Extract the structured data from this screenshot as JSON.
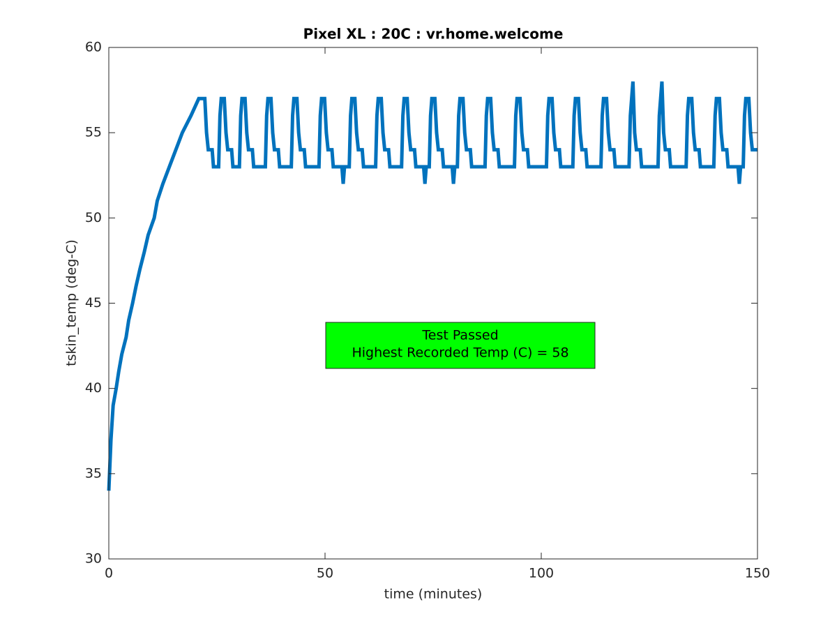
{
  "chart_data": {
    "type": "line",
    "title": "Pixel XL : 20C : vr.home.welcome",
    "xlabel": "time (minutes)",
    "ylabel": "tskin_temp (deg-C)",
    "annotation": [
      "Test Passed",
      "Highest Recorded Temp (C) = 58"
    ],
    "color": "#0072bd",
    "xlim": [
      0,
      150
    ],
    "xticks": [
      0,
      50,
      100,
      150
    ],
    "ylim": [
      30,
      60
    ],
    "yticks": [
      30,
      35,
      40,
      45,
      50,
      55,
      60
    ],
    "x": [
      0,
      0.5,
      1,
      1.7,
      2.3,
      3,
      4,
      4.6,
      5.5,
      6.3,
      7.2,
      8.2,
      9.1,
      10.5,
      11.2,
      12.5,
      14,
      15.5,
      17,
      19,
      20.8,
      22.2,
      22.6,
      23.0,
      23.9,
      24.2,
      25.4,
      25.7,
      26.0,
      26.7,
      27.1,
      27.5,
      28.4,
      28.7,
      30.2,
      30.5,
      30.8,
      31.5,
      31.9,
      32.3,
      33.2,
      33.5,
      36.2,
      36.5,
      36.8,
      37.5,
      37.9,
      38.3,
      39.2,
      39.5,
      42.2,
      42.5,
      42.8,
      43.5,
      43.9,
      44.3,
      45.2,
      45.5,
      48.6,
      48.9,
      49.2,
      49.9,
      50.3,
      50.7,
      51.6,
      51.9,
      53.9,
      54.2,
      54.5,
      55.6,
      55.9,
      56.2,
      56.9,
      57.3,
      57.7,
      58.6,
      58.9,
      61.7,
      62.0,
      62.3,
      63.0,
      63.4,
      63.8,
      64.7,
      65.0,
      67.7,
      68.0,
      68.3,
      69.0,
      69.4,
      69.8,
      70.7,
      71.0,
      72.8,
      73.1,
      73.4,
      74.1,
      74.4,
      74.7,
      75.4,
      75.8,
      76.2,
      77.1,
      77.4,
      79.4,
      79.7,
      80.0,
      80.6,
      80.9,
      81.2,
      81.9,
      82.3,
      82.7,
      83.6,
      83.9,
      87.0,
      87.3,
      87.6,
      88.3,
      88.7,
      89.1,
      90.0,
      90.3,
      93.8,
      94.1,
      94.4,
      95.1,
      95.5,
      95.9,
      96.8,
      97.1,
      101.2,
      101.5,
      101.8,
      102.5,
      102.9,
      103.3,
      104.2,
      104.5,
      107.3,
      107.6,
      107.9,
      108.6,
      109.0,
      109.4,
      110.3,
      110.6,
      113.8,
      114.1,
      114.4,
      115.1,
      115.5,
      115.9,
      116.8,
      117.1,
      120.3,
      120.6,
      120.9,
      121.2,
      121.6,
      122.0,
      122.9,
      123.2,
      127.0,
      127.3,
      127.6,
      127.9,
      128.3,
      128.7,
      129.6,
      129.9,
      133.5,
      133.8,
      134.1,
      134.8,
      135.2,
      135.6,
      136.5,
      136.8,
      139.9,
      140.2,
      140.5,
      141.2,
      141.6,
      142.0,
      142.9,
      143.2,
      145.5,
      145.8,
      146.1,
      146.7,
      147.0,
      147.3,
      148.0,
      148.4,
      148.8,
      150
    ],
    "values": [
      34,
      37,
      39,
      40,
      41,
      42,
      43,
      44,
      45,
      46,
      47,
      48,
      49,
      50,
      51,
      52,
      53,
      54,
      55,
      56,
      57,
      57,
      55,
      54,
      54,
      53,
      53,
      56,
      57,
      57,
      55,
      54,
      54,
      53,
      53,
      56,
      57,
      57,
      55,
      54,
      54,
      53,
      53,
      56,
      57,
      57,
      55,
      54,
      54,
      53,
      53,
      56,
      57,
      57,
      55,
      54,
      54,
      53,
      53,
      56,
      57,
      57,
      55,
      54,
      54,
      53,
      53,
      52,
      53,
      53,
      56,
      57,
      57,
      55,
      54,
      54,
      53,
      53,
      56,
      57,
      57,
      55,
      54,
      54,
      53,
      53,
      56,
      57,
      57,
      55,
      54,
      54,
      53,
      53,
      52,
      53,
      53,
      56,
      57,
      57,
      55,
      54,
      54,
      53,
      53,
      52,
      53,
      53,
      56,
      57,
      57,
      55,
      54,
      54,
      53,
      53,
      56,
      57,
      57,
      55,
      54,
      54,
      53,
      53,
      56,
      57,
      57,
      55,
      54,
      54,
      53,
      53,
      56,
      57,
      57,
      55,
      54,
      54,
      53,
      53,
      56,
      57,
      57,
      55,
      54,
      54,
      53,
      53,
      56,
      57,
      57,
      55,
      54,
      54,
      53,
      53,
      56,
      57,
      58,
      55,
      54,
      54,
      53,
      53,
      56,
      57,
      58,
      55,
      54,
      54,
      53,
      53,
      56,
      57,
      57,
      55,
      54,
      54,
      53,
      53,
      56,
      57,
      57,
      55,
      54,
      54,
      53,
      53,
      52,
      53,
      53,
      56,
      57,
      57,
      55,
      54,
      54
    ]
  }
}
